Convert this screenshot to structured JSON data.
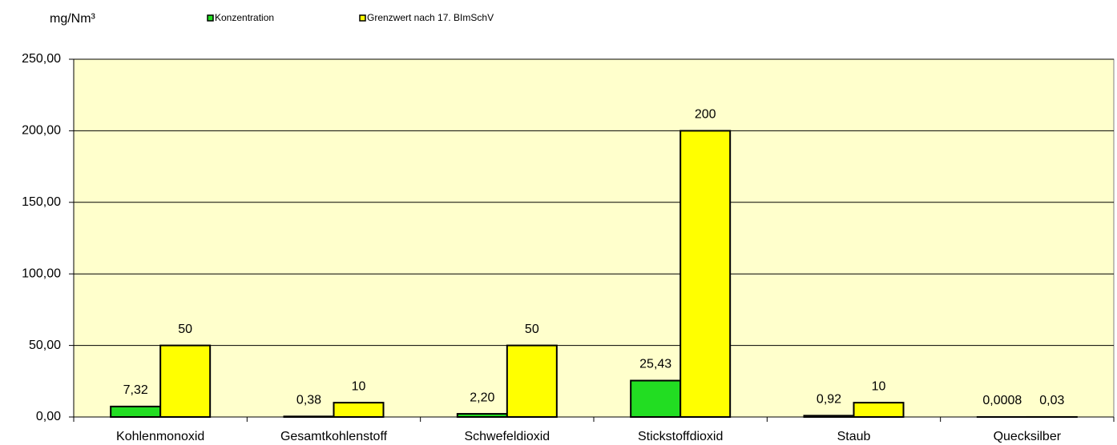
{
  "chart_data": {
    "type": "bar",
    "y_label": "mg/Nm³",
    "legend": "top",
    "categories": [
      "Kohlenmonoxid",
      "Gesamtkohlenstoff",
      "Schwefeldioxid",
      "Stickstoffdioxid",
      "Staub",
      "Quecksilber"
    ],
    "series": [
      {
        "name": "Konzentration",
        "color": "#22dd22",
        "values": [
          7.32,
          0.38,
          2.2,
          25.43,
          0.92,
          0.0008
        ],
        "value_labels": [
          "7,32",
          "0,38",
          "2,20",
          "25,43",
          "0,92",
          "0,0008"
        ]
      },
      {
        "name": "Grenzwert nach 17. BImSchV",
        "color": "#ffff00",
        "values": [
          50,
          10,
          50,
          200,
          10,
          0.03
        ],
        "value_labels": [
          "50",
          "10",
          "50",
          "200",
          "10",
          "0,03"
        ]
      }
    ],
    "ylim": [
      0,
      250
    ],
    "yticks": [
      {
        "value": 0,
        "label": "0,00"
      },
      {
        "value": 50,
        "label": "50,00"
      },
      {
        "value": 100,
        "label": "100,00"
      },
      {
        "value": 150,
        "label": "150,00"
      },
      {
        "value": 200,
        "label": "200,00"
      },
      {
        "value": 250,
        "label": "250,00"
      }
    ],
    "grid": true,
    "plot_background": "#ffffcc"
  }
}
